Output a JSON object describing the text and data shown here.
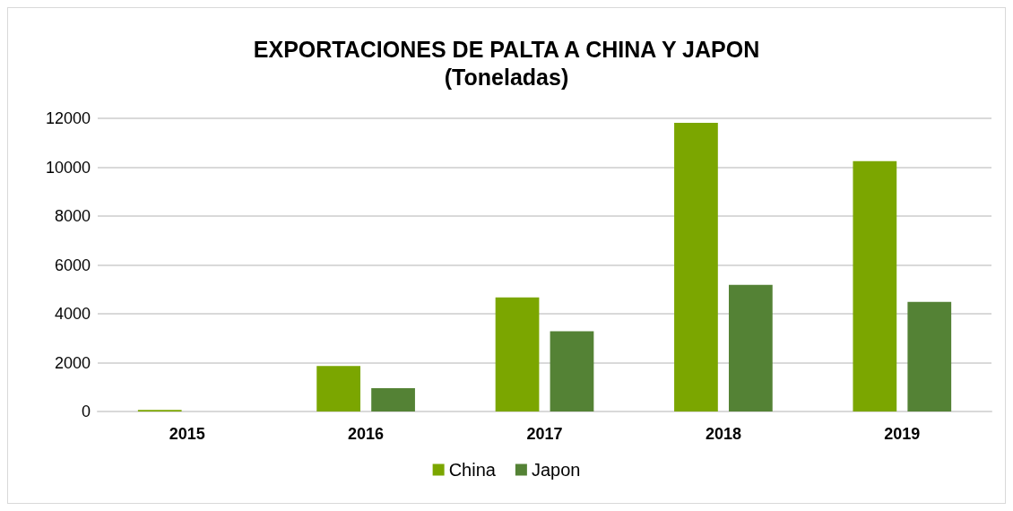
{
  "chart_data": {
    "type": "bar",
    "title": "EXPORTACIONES DE PALTA A CHINA Y JAPON",
    "subtitle": "(Toneladas)",
    "categories": [
      "2015",
      "2016",
      "2017",
      "2018",
      "2019"
    ],
    "series": [
      {
        "name": "China",
        "color": "#7ba600",
        "values": [
          60,
          1860,
          4670,
          11820,
          10250
        ]
      },
      {
        "name": "Japon",
        "color": "#548235",
        "values": [
          null,
          950,
          3280,
          5180,
          4490
        ]
      }
    ],
    "ylim": [
      0,
      12000
    ],
    "yticks": [
      0,
      2000,
      4000,
      6000,
      8000,
      10000,
      12000
    ],
    "grid": "y",
    "legend": "bottom"
  }
}
